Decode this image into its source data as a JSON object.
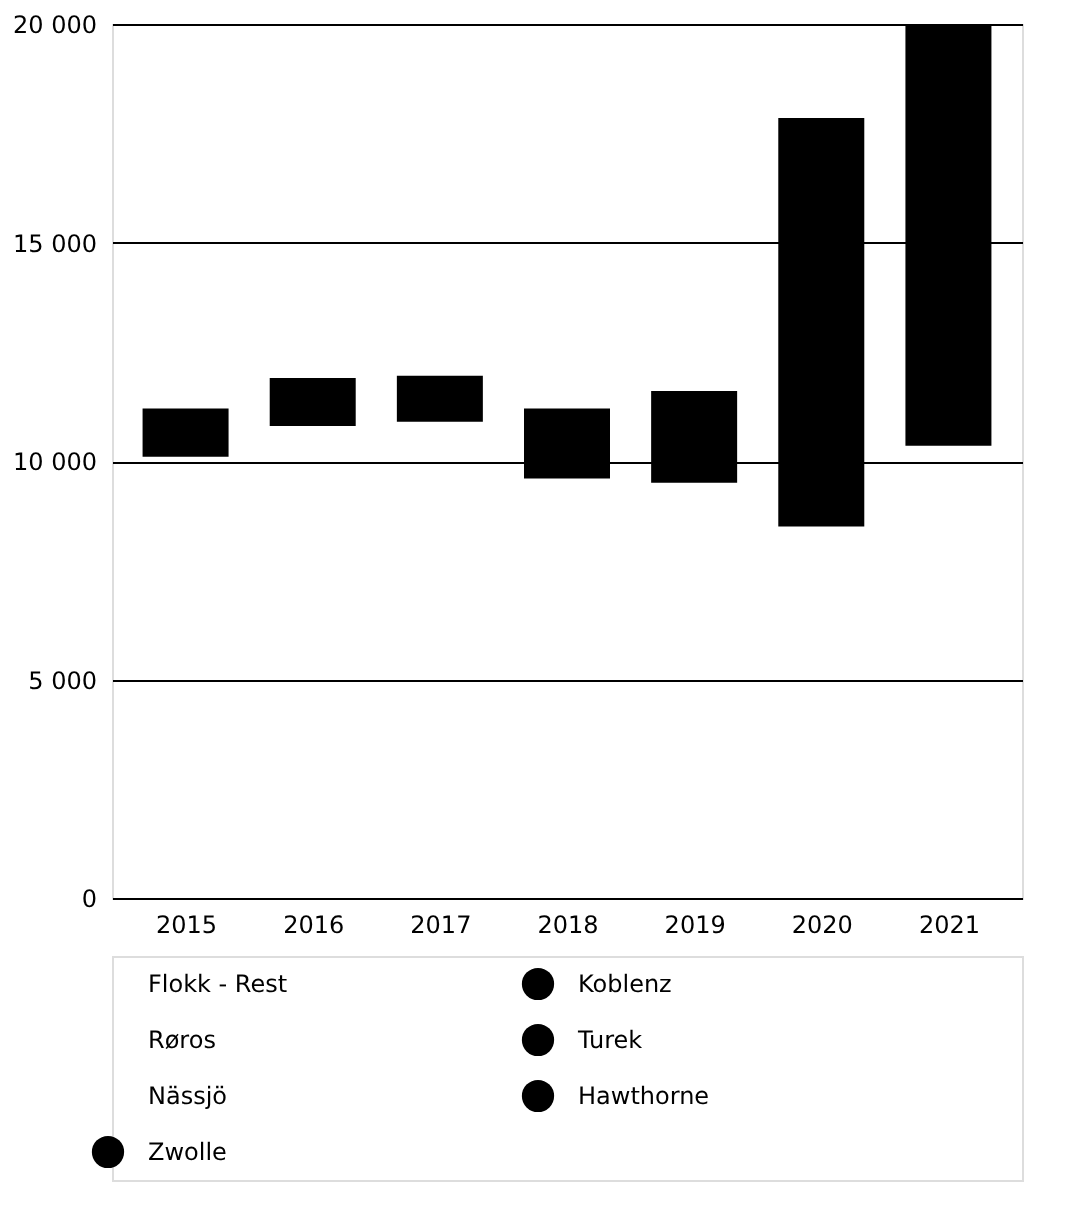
{
  "chart_data": {
    "type": "bar",
    "categories": [
      "2015",
      "2016",
      "2017",
      "2018",
      "2019",
      "2020",
      "2021"
    ],
    "series": [
      {
        "name": "Zwolle",
        "color": "#000000",
        "values": [
          null,
          null,
          null,
          null,
          null,
          null,
          null
        ]
      },
      {
        "name": "Koblenz",
        "color": "#000000",
        "values": [
          1100,
          1100,
          1050,
          1600,
          2100,
          9350,
          9650
        ],
        "base": [
          10100,
          10800,
          10900,
          9600,
          9500,
          8500,
          10350
        ]
      },
      {
        "name": "Turek",
        "color": "#000000",
        "values": [
          null,
          null,
          null,
          null,
          null,
          null,
          null
        ]
      },
      {
        "name": "Hawthorne",
        "color": "#000000",
        "values": [
          null,
          null,
          null,
          null,
          null,
          null,
          null
        ]
      }
    ],
    "annotations": [
      "Flokk - Rest",
      "Røros",
      "Nässjö"
    ],
    "ylim": [
      0,
      20000
    ],
    "yticks": [
      {
        "value": 0,
        "label": "0"
      },
      {
        "value": 5000,
        "label": "5 000"
      },
      {
        "value": 10000,
        "label": "10 000"
      },
      {
        "value": 15000,
        "label": "15 000"
      },
      {
        "value": 20000,
        "label": "20 000"
      }
    ],
    "grid": "y",
    "legend": "bottom"
  }
}
